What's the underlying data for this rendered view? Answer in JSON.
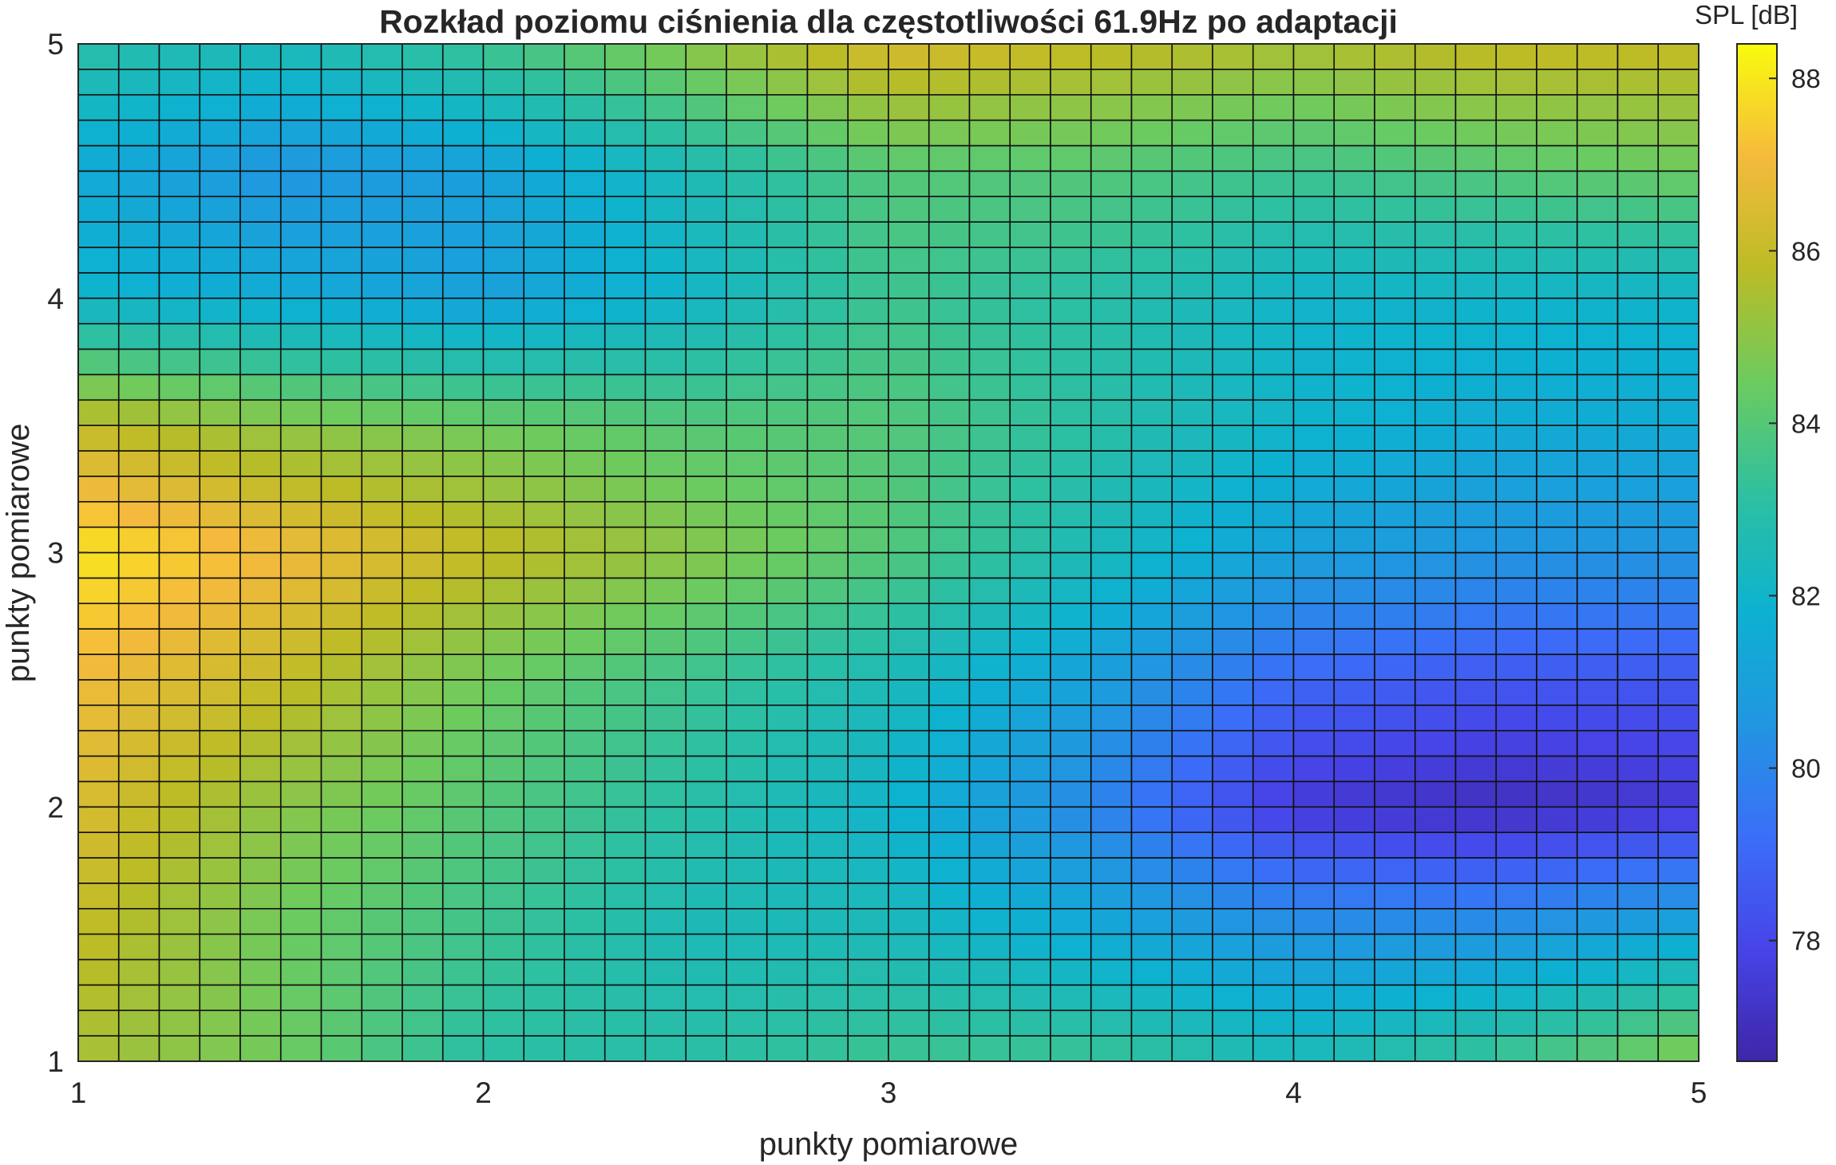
{
  "chart_data": {
    "type": "heatmap",
    "title": "Rozkład poziomu ciśnienia dla częstotliwości 61.9Hz po adaptacji",
    "xlabel": "punkty pomiarowe",
    "ylabel": "punkty pomiarowe",
    "colorbar_label": "SPL [dB]",
    "xlim": [
      1,
      5
    ],
    "ylim": [
      1,
      5
    ],
    "clim": [
      76.6,
      88.4
    ],
    "x_ticks": [
      "1",
      "2",
      "3",
      "4",
      "5"
    ],
    "y_ticks": [
      "1",
      "2",
      "3",
      "4",
      "5"
    ],
    "colorbar_ticks": [
      "78",
      "80",
      "82",
      "84",
      "86",
      "88"
    ],
    "grid_columns": 40,
    "grid_rows": 40,
    "colormap": "parula",
    "field": {
      "x": [
        1,
        1.5,
        2,
        2.5,
        3,
        3.5,
        4,
        4.5,
        5
      ],
      "y": [
        1,
        1.5,
        2,
        2.5,
        3,
        3.5,
        4,
        4.5,
        5
      ],
      "spl_db": [
        [
          85.5,
          84.5,
          83.0,
          83.0,
          83.5,
          83.5,
          82.5,
          83.5,
          85.0
        ],
        [
          86.0,
          84.5,
          83.5,
          82.5,
          82.5,
          81.5,
          80.5,
          80.5,
          81.5
        ],
        [
          86.5,
          85.0,
          84.0,
          83.0,
          82.0,
          80.0,
          77.5,
          77.0,
          77.5
        ],
        [
          87.0,
          86.0,
          84.5,
          83.5,
          82.5,
          81.0,
          79.0,
          78.5,
          78.5
        ],
        [
          88.0,
          87.0,
          86.0,
          85.0,
          84.0,
          82.5,
          81.0,
          80.5,
          80.5
        ],
        [
          86.0,
          85.0,
          84.5,
          84.0,
          84.0,
          83.0,
          82.0,
          81.5,
          81.5
        ],
        [
          82.0,
          81.5,
          81.0,
          82.0,
          83.5,
          83.0,
          82.0,
          82.0,
          82.0
        ],
        [
          81.5,
          80.5,
          81.0,
          82.5,
          84.0,
          84.0,
          83.5,
          84.0,
          84.5
        ],
        [
          83.0,
          82.5,
          83.5,
          85.0,
          86.5,
          86.0,
          85.5,
          86.0,
          86.0
        ]
      ]
    }
  }
}
